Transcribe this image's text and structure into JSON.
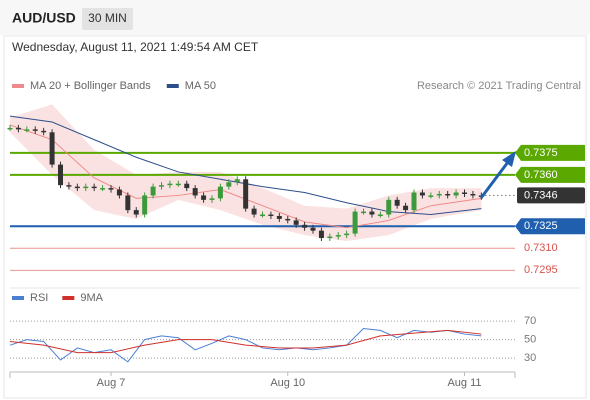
{
  "header": {
    "symbol": "AUD/USD",
    "timeframe": "30 MIN",
    "date": "Wednesday, August 11, 2021 1:49:54 AM CET"
  },
  "chart_data": [
    {
      "type": "candlestick",
      "source": "Research © 2021 Trading Central",
      "up_color": "#3c9a3c",
      "down_color": "#333333",
      "closes": [
        0.7392,
        0.7391,
        0.7391,
        0.739,
        0.7389,
        0.7367,
        0.7353,
        0.7352,
        0.7351,
        0.7352,
        0.7351,
        0.7351,
        0.735,
        0.7346,
        0.7336,
        0.7333,
        0.7346,
        0.7352,
        0.7353,
        0.7354,
        0.7354,
        0.7351,
        0.7346,
        0.7343,
        0.7344,
        0.7352,
        0.7355,
        0.7357,
        0.7337,
        0.7333,
        0.7333,
        0.7332,
        0.733,
        0.7329,
        0.7326,
        0.7324,
        0.7322,
        0.7317,
        0.7318,
        0.7319,
        0.732,
        0.7335,
        0.7335,
        0.7333,
        0.7333,
        0.7343,
        0.7339,
        0.7336,
        0.7348,
        0.7346,
        0.7346,
        0.7347,
        0.7346,
        0.7348,
        0.7347,
        0.7346,
        0.7345
      ],
      "series": [
        {
          "name": "MA 20 + Bollinger Bands",
          "color": "#f08a8a",
          "x": [
            0,
            5,
            10,
            15,
            20,
            25,
            30,
            35,
            40,
            45,
            50,
            56
          ],
          "values": [
            0.7394,
            0.7384,
            0.7358,
            0.7344,
            0.7346,
            0.735,
            0.7339,
            0.7328,
            0.7324,
            0.7329,
            0.7339,
            0.7344
          ],
          "upper": [
            0.7399,
            0.7408,
            0.7377,
            0.736,
            0.7362,
            0.7362,
            0.7351,
            0.7339,
            0.7337,
            0.7346,
            0.7351,
            0.7351
          ],
          "lower": [
            0.7389,
            0.736,
            0.7336,
            0.733,
            0.7343,
            0.7336,
            0.7326,
            0.7319,
            0.7315,
            0.7319,
            0.733,
            0.7336
          ]
        },
        {
          "name": "MA 50",
          "color": "#2c4f8a",
          "x": [
            0,
            5,
            10,
            15,
            20,
            25,
            30,
            35,
            40,
            45,
            50,
            56
          ],
          "values": [
            0.74,
            0.7396,
            0.7384,
            0.7372,
            0.7362,
            0.7357,
            0.7352,
            0.7348,
            0.7341,
            0.7335,
            0.7333,
            0.7337
          ]
        }
      ],
      "levels": [
        {
          "value": 0.7375,
          "color": "#5aa800",
          "style": "box"
        },
        {
          "value": 0.736,
          "label": "0.7360",
          "color": "#5aa800",
          "style": "box"
        },
        {
          "value": 0.7346,
          "color": "#333333",
          "style": "current"
        },
        {
          "value": 0.7325,
          "color": "#1f5fae",
          "style": "box"
        },
        {
          "value": 0.731,
          "label": "0.7310",
          "color": "#d9534f",
          "style": "text"
        },
        {
          "value": 0.7295,
          "color": "#d9534f",
          "style": "text"
        }
      ],
      "xlim": [
        0,
        60
      ],
      "ylim": [
        0.7285,
        0.7411
      ]
    },
    {
      "type": "line",
      "series": [
        {
          "name": "RSI",
          "color": "#4a7fd4",
          "x": [
            0,
            2,
            4,
            6,
            8,
            10,
            12,
            14,
            16,
            18,
            20,
            22,
            24,
            26,
            28,
            30,
            32,
            34,
            36,
            38,
            40,
            42,
            44,
            46,
            48,
            50,
            52,
            54,
            56
          ],
          "values": [
            44,
            50,
            48,
            28,
            41,
            36,
            39,
            26,
            50,
            54,
            52,
            39,
            46,
            54,
            50,
            41,
            39,
            41,
            39,
            41,
            44,
            62,
            60,
            52,
            60,
            58,
            60,
            56,
            54
          ]
        },
        {
          "name": "9MA",
          "color": "#d0302a",
          "x": [
            0,
            4,
            8,
            12,
            16,
            20,
            24,
            28,
            32,
            36,
            40,
            44,
            48,
            52,
            56
          ],
          "values": [
            48,
            44,
            36,
            36,
            44,
            50,
            50,
            44,
            41,
            41,
            44,
            54,
            57,
            60,
            56
          ]
        }
      ],
      "xlim": [
        0,
        60
      ],
      "ylim": [
        15,
        82
      ],
      "yticks": [
        70,
        50,
        30
      ],
      "xticks": [
        {
          "value": 12,
          "label": "Aug 7"
        },
        {
          "value": 33,
          "label": "Aug 10"
        },
        {
          "value": 54,
          "label": "Aug 11"
        }
      ]
    }
  ]
}
